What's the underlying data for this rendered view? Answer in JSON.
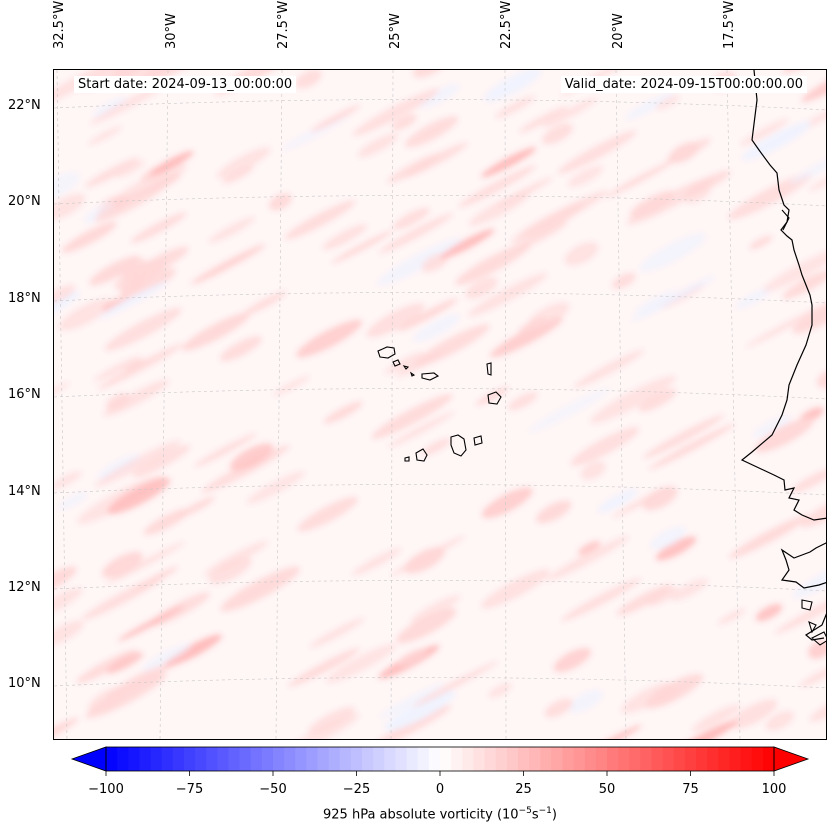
{
  "map": {
    "start_date": "Start date: 2024-09-13_00:00:00",
    "valid_date": "Valid_date: 2024-09-15T00:00:00.00",
    "lon_labels": [
      "32.5°W",
      "30°W",
      "27.5°W",
      "25°W",
      "22.5°W",
      "20°W",
      "17.5°W"
    ],
    "lat_labels": [
      "22°N",
      "20°N",
      "18°N",
      "16°N",
      "14°N",
      "12°N",
      "10°N"
    ],
    "field_colors": {
      "background": "#fff6f6",
      "positive": "#ffd6d6",
      "positive_strong": "#ffb8b8",
      "negative": "#eef2ff"
    }
  },
  "colorbar": {
    "label_prefix": "925 hPa absolute vorticity (10",
    "label_exp1": "−5",
    "label_mid": "s",
    "label_exp2": "−1",
    "label_suffix": ")",
    "ticks": [
      "−100",
      "−75",
      "−50",
      "−25",
      "0",
      "25",
      "50",
      "75",
      "100"
    ],
    "min": -100,
    "max": 100,
    "levels": 60,
    "cmap": "bwr"
  }
}
